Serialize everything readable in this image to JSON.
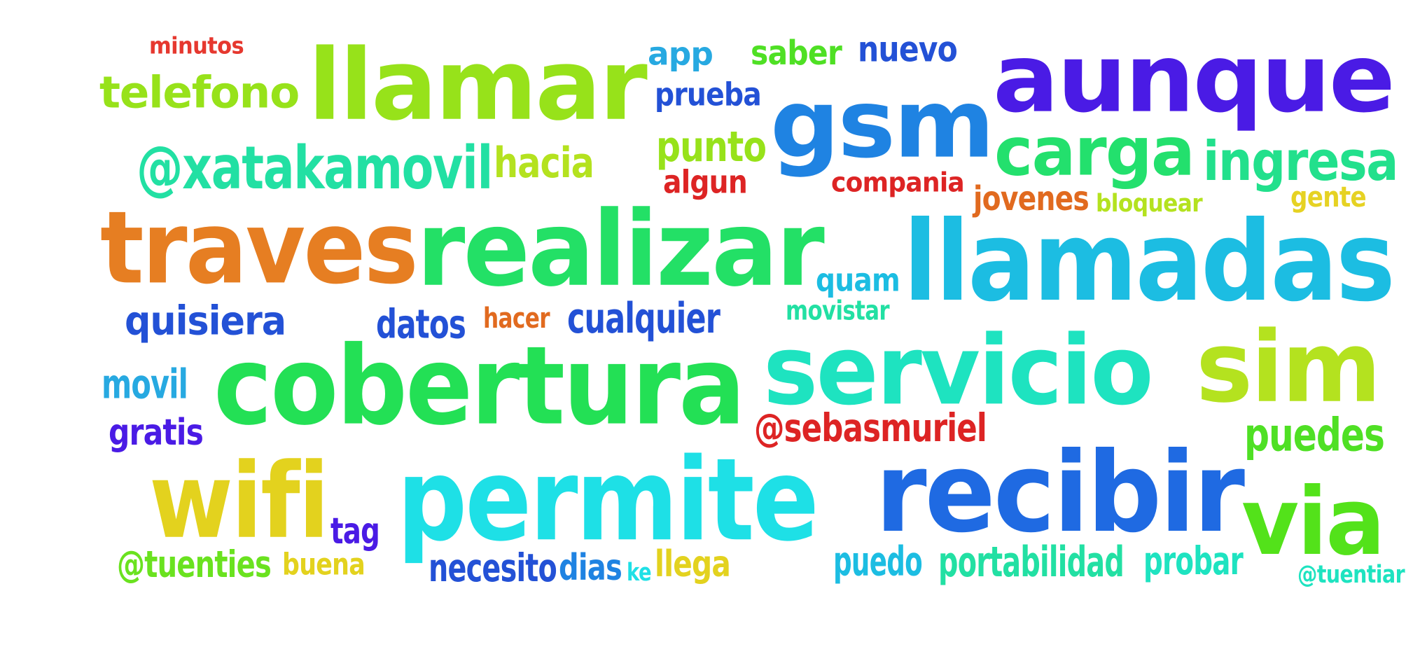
{
  "words": [
    {
      "id": "minutos",
      "text": "minutos",
      "color": "#e6382f"
    },
    {
      "id": "llamar",
      "text": "llamar",
      "color": "#97e21a"
    },
    {
      "id": "app",
      "text": "app",
      "color": "#27a9e1"
    },
    {
      "id": "saber",
      "text": "saber",
      "color": "#4fe024"
    },
    {
      "id": "nuevo",
      "text": "nuevo",
      "color": "#2351d6"
    },
    {
      "id": "aunque",
      "text": "aunque",
      "color": "#4a1be5"
    },
    {
      "id": "telefono",
      "text": "telefono",
      "color": "#97e21a"
    },
    {
      "id": "prueba",
      "text": "prueba",
      "color": "#2351d6"
    },
    {
      "id": "gsm",
      "text": "gsm",
      "color": "#1f83e2"
    },
    {
      "id": "xatakamovil",
      "text": "@xatakamovil",
      "color": "#22e0a3"
    },
    {
      "id": "hacia",
      "text": "hacia",
      "color": "#b4e21f"
    },
    {
      "id": "punto",
      "text": "punto",
      "color": "#97e21a"
    },
    {
      "id": "carga",
      "text": "carga",
      "color": "#23e06d"
    },
    {
      "id": "ingresa",
      "text": "ingresa",
      "color": "#22e08c"
    },
    {
      "id": "algun",
      "text": "algun",
      "color": "#dd2424"
    },
    {
      "id": "compania",
      "text": "compania",
      "color": "#dd2424"
    },
    {
      "id": "jovenes",
      "text": "jovenes",
      "color": "#e16a1f"
    },
    {
      "id": "bloquear",
      "text": "bloquear",
      "color": "#b4e21f"
    },
    {
      "id": "gente",
      "text": "gente",
      "color": "#e6d223"
    },
    {
      "id": "traves",
      "text": "traves",
      "color": "#e67e22"
    },
    {
      "id": "realizar",
      "text": "realizar",
      "color": "#23e066"
    },
    {
      "id": "llamadas",
      "text": "llamadas",
      "color": "#1cbde2"
    },
    {
      "id": "quam",
      "text": "quam",
      "color": "#1cbde2"
    },
    {
      "id": "quisiera",
      "text": "quisiera",
      "color": "#2351d6"
    },
    {
      "id": "datos",
      "text": "datos",
      "color": "#2351d6"
    },
    {
      "id": "hacer",
      "text": "hacer",
      "color": "#e16a1f"
    },
    {
      "id": "cualquier",
      "text": "cualquier",
      "color": "#2351d6"
    },
    {
      "id": "movistar",
      "text": "movistar",
      "color": "#22e0a3"
    },
    {
      "id": "servicio",
      "text": "servicio",
      "color": "#1ee3c0"
    },
    {
      "id": "sim",
      "text": "sim",
      "color": "#b4e21f"
    },
    {
      "id": "movil",
      "text": "movil",
      "color": "#27a9e1"
    },
    {
      "id": "cobertura",
      "text": "cobertura",
      "color": "#23e055"
    },
    {
      "id": "gratis",
      "text": "gratis",
      "color": "#4a1be5"
    },
    {
      "id": "sebasmuriel",
      "text": "@sebasmuriel",
      "color": "#dd2424"
    },
    {
      "id": "puedes",
      "text": "puedes",
      "color": "#4fe024"
    },
    {
      "id": "wifi",
      "text": "wifi",
      "color": "#e3d21e"
    },
    {
      "id": "permite",
      "text": "permite",
      "color": "#1ee0e6"
    },
    {
      "id": "recibir",
      "text": "recibir",
      "color": "#1f6ae2"
    },
    {
      "id": "via",
      "text": "via",
      "color": "#53e21a"
    },
    {
      "id": "tag",
      "text": "tag",
      "color": "#4a1be5"
    },
    {
      "id": "tuenties",
      "text": "@tuenties",
      "color": "#6ae21f"
    },
    {
      "id": "buena",
      "text": "buena",
      "color": "#e3d21e"
    },
    {
      "id": "necesito",
      "text": "necesito",
      "color": "#2351d6"
    },
    {
      "id": "dias",
      "text": "dias",
      "color": "#1f83e2"
    },
    {
      "id": "ke",
      "text": "ke",
      "color": "#1ee0e6"
    },
    {
      "id": "llega",
      "text": "llega",
      "color": "#e3d21e"
    },
    {
      "id": "puedo",
      "text": "puedo",
      "color": "#1cbde2"
    },
    {
      "id": "portabilidad",
      "text": "portabilidad",
      "color": "#22e0a3"
    },
    {
      "id": "probar",
      "text": "probar",
      "color": "#1ee3c0"
    },
    {
      "id": "tuentiar",
      "text": "@tuentiar",
      "color": "#1ee3c0"
    }
  ]
}
